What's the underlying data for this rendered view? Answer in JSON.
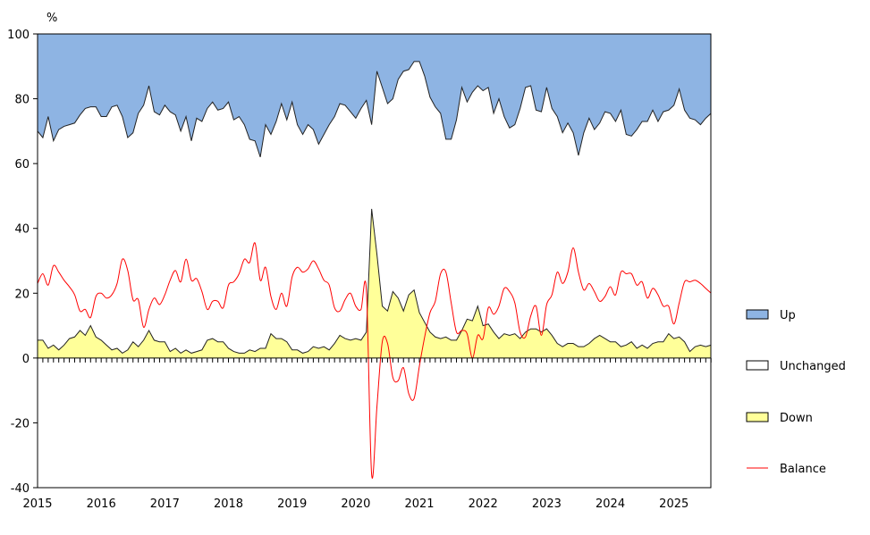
{
  "chart_data": {
    "type": "area",
    "y_unit_label": "%",
    "ylim": [
      -40,
      100
    ],
    "yticks": [
      -40,
      -20,
      0,
      20,
      40,
      60,
      80,
      100
    ],
    "x_range": [
      2015.0,
      2025.58
    ],
    "xticks": [
      "2015",
      "2016",
      "2017",
      "2018",
      "2019",
      "2020",
      "2021",
      "2022",
      "2023",
      "2024",
      "2025"
    ],
    "grid": false,
    "legend_position": "right",
    "colors": {
      "up": "#8EB4E3",
      "unchanged": "#FFFFFF",
      "down": "#FFFF99",
      "balance": "#FF0000",
      "outline": "#222222"
    },
    "x": [
      2015.0,
      2015.083,
      2015.167,
      2015.25,
      2015.333,
      2015.417,
      2015.5,
      2015.583,
      2015.667,
      2015.75,
      2015.833,
      2015.917,
      2016.0,
      2016.083,
      2016.167,
      2016.25,
      2016.333,
      2016.417,
      2016.5,
      2016.583,
      2016.667,
      2016.75,
      2016.833,
      2016.917,
      2017.0,
      2017.083,
      2017.167,
      2017.25,
      2017.333,
      2017.417,
      2017.5,
      2017.583,
      2017.667,
      2017.75,
      2017.833,
      2017.917,
      2018.0,
      2018.083,
      2018.167,
      2018.25,
      2018.333,
      2018.417,
      2018.5,
      2018.583,
      2018.667,
      2018.75,
      2018.833,
      2018.917,
      2019.0,
      2019.083,
      2019.167,
      2019.25,
      2019.333,
      2019.417,
      2019.5,
      2019.583,
      2019.667,
      2019.75,
      2019.833,
      2019.917,
      2020.0,
      2020.083,
      2020.167,
      2020.25,
      2020.333,
      2020.417,
      2020.5,
      2020.583,
      2020.667,
      2020.75,
      2020.833,
      2020.917,
      2021.0,
      2021.083,
      2021.167,
      2021.25,
      2021.333,
      2021.417,
      2021.5,
      2021.583,
      2021.667,
      2021.75,
      2021.833,
      2021.917,
      2022.0,
      2022.083,
      2022.167,
      2022.25,
      2022.333,
      2022.417,
      2022.5,
      2022.583,
      2022.667,
      2022.75,
      2022.833,
      2022.917,
      2023.0,
      2023.083,
      2023.167,
      2023.25,
      2023.333,
      2023.417,
      2023.5,
      2023.583,
      2023.667,
      2023.75,
      2023.833,
      2023.917,
      2024.0,
      2024.083,
      2024.167,
      2024.25,
      2024.333,
      2024.417,
      2024.5,
      2024.583,
      2024.667,
      2024.75,
      2024.833,
      2024.917,
      2025.0,
      2025.083,
      2025.167,
      2025.25,
      2025.333,
      2025.417,
      2025.5,
      2025.583
    ],
    "series": [
      {
        "name": "Up",
        "note": "cumulative top of Unchanged band (Down + Unchanged)",
        "values": [
          70,
          68,
          74.5,
          67,
          70.5,
          71.5,
          72,
          72.5,
          75,
          77,
          77.5,
          77.5,
          74.5,
          74.5,
          77.5,
          78,
          74.5,
          68,
          69.5,
          75.5,
          78,
          84,
          76,
          75,
          78,
          76,
          75,
          70,
          74.5,
          67,
          74,
          73,
          77,
          79,
          76.5,
          77,
          79,
          73.5,
          74.5,
          72,
          67.5,
          67,
          62,
          72,
          69,
          73,
          78.5,
          73.5,
          79,
          72,
          69,
          72,
          70.5,
          66,
          69,
          72,
          74.5,
          78.5,
          78,
          76,
          74,
          77,
          79.5,
          72,
          88.5,
          83.5,
          78.5,
          80,
          86,
          88.5,
          89,
          91.5,
          91.5,
          87,
          80.5,
          77.5,
          75.5,
          67.5,
          67.5,
          73.5,
          83.5,
          79,
          82,
          84,
          82.5,
          83.5,
          75.5,
          80,
          74.5,
          71,
          72,
          77,
          83.5,
          84,
          76.5,
          76,
          83.5,
          77,
          74.5,
          69.5,
          72.5,
          69.5,
          62.5,
          69.5,
          74,
          70.5,
          72.5,
          76,
          75.5,
          73,
          76.5,
          69,
          68.5,
          70.5,
          73,
          73,
          76.5,
          73,
          76,
          76.5,
          78,
          83,
          76.5,
          74,
          73.5,
          72,
          74,
          75.5
        ]
      },
      {
        "name": "Unchanged",
        "note": "top of Down band",
        "values": [
          5.5,
          5.5,
          3,
          4,
          2.5,
          4,
          6,
          6.5,
          8.5,
          7,
          10,
          6.5,
          5.5,
          4,
          2.5,
          3,
          1.5,
          2.5,
          5,
          3.5,
          5.5,
          8.5,
          5.5,
          5,
          5,
          2,
          3,
          1.5,
          2.5,
          1.5,
          2,
          2.5,
          5.5,
          6,
          5,
          5,
          3,
          2,
          1.5,
          1.5,
          2.5,
          2,
          3,
          3,
          7.5,
          6,
          6,
          5,
          2.5,
          2.5,
          1.5,
          2,
          3.5,
          3,
          3.5,
          2.5,
          4.5,
          7,
          6,
          5.5,
          6,
          5.5,
          8,
          46,
          32,
          16,
          14.5,
          20.5,
          18.5,
          14.5,
          19.5,
          21,
          14,
          11,
          8,
          6.5,
          6,
          6.5,
          5.5,
          5.5,
          8.5,
          12,
          11.5,
          16,
          10,
          10.5,
          8,
          6,
          7.5,
          7,
          7.5,
          6,
          8,
          9,
          9,
          8,
          9,
          7,
          4.5,
          3.5,
          4.5,
          4.5,
          3.5,
          3.5,
          4.5,
          6,
          7,
          6,
          5,
          5,
          3.5,
          4,
          5,
          3,
          4,
          3,
          4.5,
          5,
          5,
          7.5,
          6,
          6.5,
          5,
          2,
          3.5,
          4,
          3.5,
          4
        ]
      },
      {
        "name": "Down",
        "note": "baseline of Down band",
        "values": [
          0,
          0,
          0,
          0,
          0,
          0,
          0,
          0,
          0,
          0,
          0,
          0,
          0,
          0,
          0,
          0,
          0,
          0,
          0,
          0,
          0,
          0,
          0,
          0,
          0,
          0,
          0,
          0,
          0,
          0,
          0,
          0,
          0,
          0,
          0,
          0,
          0,
          0,
          0,
          0,
          0,
          0,
          0,
          0,
          0,
          0,
          0,
          0,
          0,
          0,
          0,
          0,
          0,
          0,
          0,
          0,
          0,
          0,
          0,
          0,
          0,
          0,
          0,
          0,
          0,
          0,
          0,
          0,
          0,
          0,
          0,
          0,
          0,
          0,
          0,
          0,
          0,
          0,
          0,
          0,
          0,
          0,
          0,
          0,
          0,
          0,
          0,
          0,
          0,
          0,
          0,
          0,
          0,
          0,
          0,
          0,
          0,
          0,
          0,
          0,
          0,
          0,
          0,
          0,
          0,
          0,
          0,
          0,
          0,
          0,
          0,
          0,
          0,
          0,
          0,
          0,
          0,
          0,
          0,
          0,
          0,
          0,
          0,
          0,
          0,
          0,
          0,
          0
        ]
      },
      {
        "name": "Balance",
        "values": [
          23,
          26,
          22.5,
          28.5,
          26.5,
          24,
          22,
          19.5,
          14.5,
          15,
          12.5,
          19,
          20,
          18.5,
          19.5,
          23,
          30.5,
          27,
          18,
          18,
          9.5,
          15,
          18.5,
          16.5,
          19.5,
          24,
          27,
          23.5,
          30.5,
          24,
          24.5,
          20.5,
          15,
          17.5,
          17.5,
          15.5,
          22.5,
          23.5,
          26,
          30.5,
          29.5,
          35.5,
          24,
          28,
          19,
          15,
          20,
          16,
          25,
          28,
          26.5,
          27.5,
          30,
          27.5,
          24,
          22.5,
          15.5,
          14.5,
          18,
          20,
          16,
          15,
          21,
          -36,
          -15,
          5,
          4.5,
          -6,
          -7,
          -3,
          -11,
          -12.5,
          -2.5,
          6.5,
          14,
          17.5,
          26,
          26.5,
          17,
          8,
          8.5,
          7.5,
          0,
          7,
          6,
          15.5,
          13.5,
          16,
          21.5,
          20.5,
          17,
          8,
          6.5,
          13,
          16,
          7,
          16.5,
          19.5,
          26.5,
          23,
          26.5,
          34,
          26.5,
          21,
          23,
          20.5,
          17.5,
          19,
          22,
          19.5,
          26.5,
          26,
          26,
          22.5,
          23.5,
          18.5,
          21.5,
          19.5,
          16,
          16,
          10.5,
          17,
          23.5,
          23.5,
          24,
          23,
          21.5,
          20
        ]
      }
    ]
  }
}
